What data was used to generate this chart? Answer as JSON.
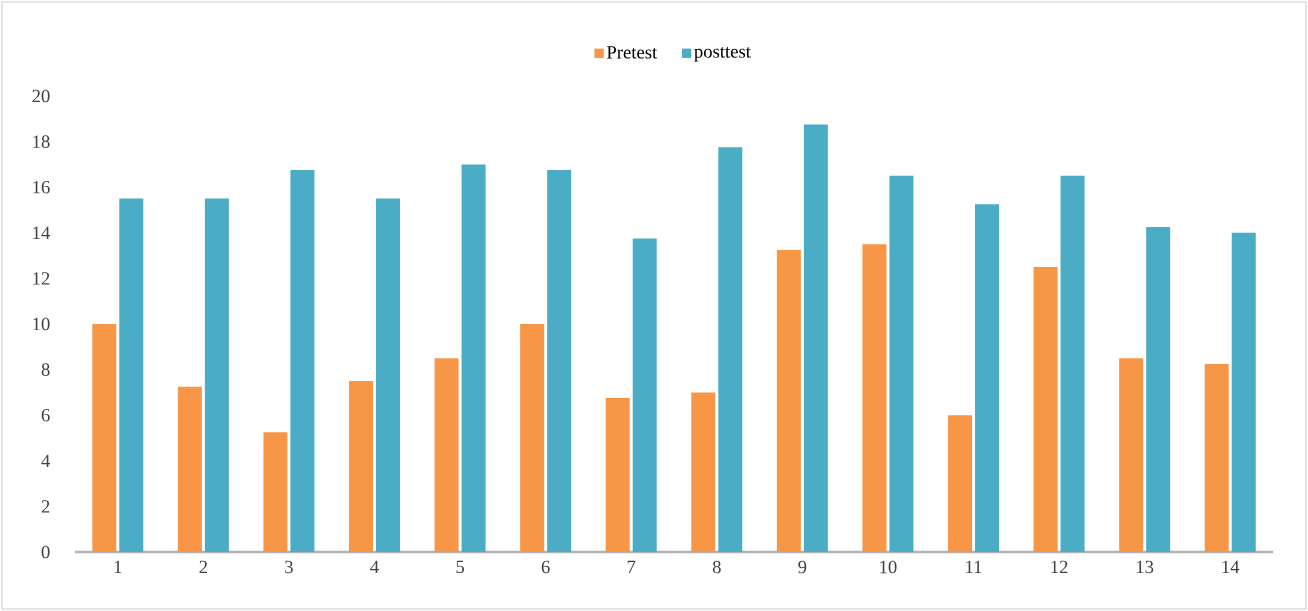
{
  "chart_data": {
    "type": "bar",
    "categories": [
      "1",
      "2",
      "3",
      "4",
      "5",
      "6",
      "7",
      "8",
      "9",
      "10",
      "11",
      "12",
      "13",
      "14"
    ],
    "series": [
      {
        "name": "Pretest",
        "color": "#f79646",
        "values": [
          10,
          7.25,
          5.25,
          7.5,
          8.5,
          10,
          6.75,
          7,
          13.25,
          13.5,
          6,
          12.5,
          8.5,
          8.25
        ]
      },
      {
        "name": "posttest",
        "color": "#4bacc6",
        "values": [
          15.5,
          15.5,
          16.75,
          15.5,
          17,
          16.75,
          13.75,
          17.75,
          18.75,
          16.5,
          15.25,
          16.5,
          14.25,
          14
        ]
      }
    ],
    "ylim": [
      0,
      20
    ],
    "yticks": [
      0,
      2,
      4,
      6,
      8,
      10,
      12,
      14,
      16,
      18,
      20
    ],
    "legend": "top"
  }
}
